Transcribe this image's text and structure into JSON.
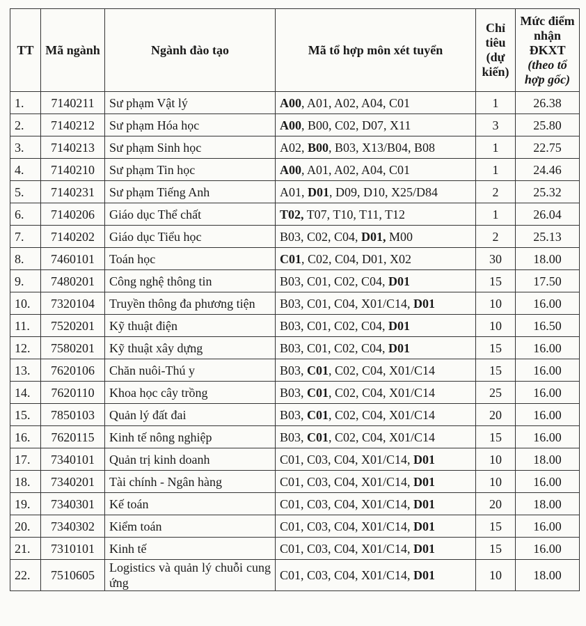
{
  "table": {
    "header": [
      [
        {
          "text": "TT"
        }
      ],
      [
        {
          "text": "Mã ngành"
        }
      ],
      [
        {
          "text": "Ngành đào tạo"
        }
      ],
      [
        {
          "text": "Mã tổ hợp môn xét tuyển"
        }
      ],
      [
        {
          "text": "Chỉ tiêu (dự kiến)"
        }
      ],
      [
        {
          "text": "Mức điểm nhận ĐKXT "
        },
        {
          "text": "(theo tổ hợp gốc)",
          "italic": true
        }
      ]
    ],
    "rows": [
      {
        "tt": "1.",
        "code": "7140211",
        "name": "Sư phạm Vật lý",
        "combination": [
          {
            "text": "A00",
            "bold": true
          },
          {
            "text": ", A01, A02, A04, C01"
          }
        ],
        "quota": "1",
        "score": "26.38"
      },
      {
        "tt": "2.",
        "code": "7140212",
        "name": "Sư phạm Hóa học",
        "combination": [
          {
            "text": "A00",
            "bold": true
          },
          {
            "text": ", B00, C02, D07, X11"
          }
        ],
        "quota": "3",
        "score": "25.80"
      },
      {
        "tt": "3.",
        "code": "7140213",
        "name": "Sư phạm Sinh học",
        "combination": [
          {
            "text": "A02, "
          },
          {
            "text": "B00",
            "bold": true
          },
          {
            "text": ", B03, X13/B04, B08"
          }
        ],
        "quota": "1",
        "score": "22.75"
      },
      {
        "tt": "4.",
        "code": "7140210",
        "name": "Sư phạm Tin học",
        "combination": [
          {
            "text": "A00",
            "bold": true
          },
          {
            "text": ", A01, A02, A04, C01"
          }
        ],
        "quota": "1",
        "score": "24.46"
      },
      {
        "tt": "5.",
        "code": "7140231",
        "name": "Sư phạm Tiếng Anh",
        "combination": [
          {
            "text": "A01, "
          },
          {
            "text": "D01",
            "bold": true
          },
          {
            "text": ", D09, D10, X25/D84"
          }
        ],
        "quota": "2",
        "score": "25.32"
      },
      {
        "tt": "6.",
        "code": "7140206",
        "name": "Giáo dục Thể chất",
        "combination": [
          {
            "text": "T02,",
            "bold": true
          },
          {
            "text": " T07, T10, T11, T12"
          }
        ],
        "quota": "1",
        "score": "26.04"
      },
      {
        "tt": "7.",
        "code": "7140202",
        "name": "Giáo dục Tiểu học",
        "combination": [
          {
            "text": "B03, C02, C04, "
          },
          {
            "text": "D01,",
            "bold": true
          },
          {
            "text": " M00"
          }
        ],
        "quota": "2",
        "score": "25.13"
      },
      {
        "tt": "8.",
        "code": "7460101",
        "name": "Toán học",
        "combination": [
          {
            "text": "C01",
            "bold": true
          },
          {
            "text": ", C02, C04, D01, X02"
          }
        ],
        "quota": "30",
        "score": "18.00"
      },
      {
        "tt": "9.",
        "code": "7480201",
        "name": "Công nghệ thông tin",
        "combination": [
          {
            "text": "B03, C01, C02, C04, "
          },
          {
            "text": "D01",
            "bold": true
          }
        ],
        "quota": "15",
        "score": "17.50"
      },
      {
        "tt": "10.",
        "code": "7320104",
        "name": "Truyền thông đa phương tiện",
        "combination": [
          {
            "text": "B03, C01, C04, X01/C14, "
          },
          {
            "text": "D01",
            "bold": true
          }
        ],
        "quota": "10",
        "score": "16.00"
      },
      {
        "tt": "11.",
        "code": "7520201",
        "name": "Kỹ thuật điện",
        "combination": [
          {
            "text": "B03, C01, C02, C04, "
          },
          {
            "text": "D01",
            "bold": true
          }
        ],
        "quota": "10",
        "score": "16.50"
      },
      {
        "tt": "12.",
        "code": "7580201",
        "name": "Kỹ thuật xây dựng",
        "combination": [
          {
            "text": "B03, C01, C02, C04, "
          },
          {
            "text": "D01",
            "bold": true
          }
        ],
        "quota": "15",
        "score": "16.00"
      },
      {
        "tt": "13.",
        "code": "7620106",
        "name": "Chăn nuôi-Thú y",
        "combination": [
          {
            "text": "B03, "
          },
          {
            "text": "C01",
            "bold": true
          },
          {
            "text": ", C02, C04, X01/C14"
          }
        ],
        "quota": "15",
        "score": "16.00"
      },
      {
        "tt": "14.",
        "code": "7620110",
        "name": "Khoa học cây trồng",
        "combination": [
          {
            "text": "B03, "
          },
          {
            "text": "C01",
            "bold": true
          },
          {
            "text": ", C02, C04, X01/C14"
          }
        ],
        "quota": "25",
        "score": "16.00"
      },
      {
        "tt": "15.",
        "code": "7850103",
        "name": "Quản lý đất đai",
        "combination": [
          {
            "text": "B03, "
          },
          {
            "text": "C01",
            "bold": true
          },
          {
            "text": ", C02, C04, X01/C14"
          }
        ],
        "quota": "20",
        "score": "16.00"
      },
      {
        "tt": "16.",
        "code": "7620115",
        "name": "Kinh tế nông nghiệp",
        "combination": [
          {
            "text": "B03, "
          },
          {
            "text": "C01",
            "bold": true
          },
          {
            "text": ", C02, C04, X01/C14"
          }
        ],
        "quota": "15",
        "score": "16.00"
      },
      {
        "tt": "17.",
        "code": "7340101",
        "name": "Quản trị kinh doanh",
        "combination": [
          {
            "text": "C01, C03, C04, X01/C14, "
          },
          {
            "text": "D01",
            "bold": true
          }
        ],
        "quota": "10",
        "score": "18.00"
      },
      {
        "tt": "18.",
        "code": "7340201",
        "name": "Tài chính - Ngân hàng",
        "combination": [
          {
            "text": "C01, C03, C04, X01/C14, "
          },
          {
            "text": "D01",
            "bold": true
          }
        ],
        "quota": "10",
        "score": "16.00"
      },
      {
        "tt": "19.",
        "code": "7340301",
        "name": "Kế toán",
        "combination": [
          {
            "text": "C01, C03, C04, X01/C14, "
          },
          {
            "text": "D01",
            "bold": true
          }
        ],
        "quota": "20",
        "score": "18.00"
      },
      {
        "tt": "20.",
        "code": "7340302",
        "name": "Kiểm toán",
        "combination": [
          {
            "text": "C01, C03, C04, X01/C14, "
          },
          {
            "text": "D01",
            "bold": true
          }
        ],
        "quota": "15",
        "score": "16.00"
      },
      {
        "tt": "21.",
        "code": "7310101",
        "name": "Kinh tế",
        "combination": [
          {
            "text": "C01, C03, C04, X01/C14, "
          },
          {
            "text": "D01",
            "bold": true
          }
        ],
        "quota": "15",
        "score": "16.00"
      },
      {
        "tt": "22.",
        "code": "7510605",
        "name": "Logistics và quản lý chuỗi cung ứng",
        "combination": [
          {
            "text": "C01, C03, C04, X01/C14, "
          },
          {
            "text": "D01",
            "bold": true
          }
        ],
        "quota": "10",
        "score": "18.00"
      }
    ]
  }
}
